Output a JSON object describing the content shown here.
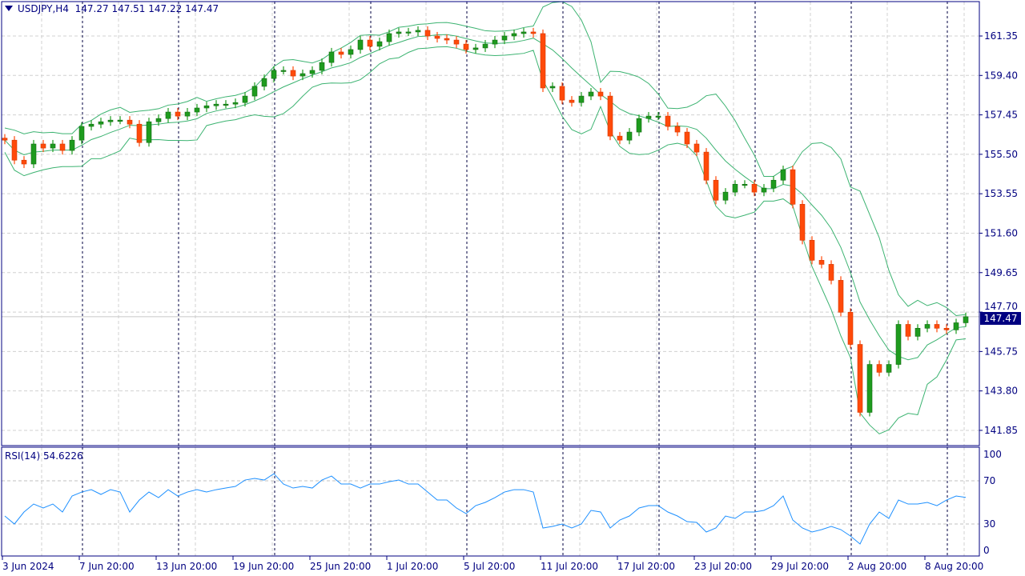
{
  "header": {
    "symbol": "USDJPY,H4",
    "open": "147.27",
    "high": "147.51",
    "low": "147.22",
    "close": "147.47"
  },
  "rsi_header": {
    "label": "RSI(14)",
    "value": "54.6226"
  },
  "current_price_tag": "147.47",
  "colors": {
    "frame": "#000080",
    "bull": "#1e9b1e",
    "bear": "#ff4a0a",
    "bands": "#3cb371",
    "rsi": "#1e90ff",
    "grid": "#d0d0d0"
  },
  "chart_data": [
    {
      "type": "candlestick",
      "title": "USDJPY,H4",
      "indicators": [
        "Bollinger Bands"
      ],
      "ylim": [
        141.0,
        163.0
      ],
      "y_ticks": [
        "161.35",
        "159.40",
        "157.45",
        "155.50",
        "153.55",
        "151.60",
        "149.65",
        "147.70",
        "145.75",
        "143.80",
        "141.85"
      ],
      "x_ticks": [
        "3 Jun 2024",
        "7 Jun 20:00",
        "13 Jun 20:00",
        "19 Jun 20:00",
        "25 Jun 20:00",
        "1 Jul 20:00",
        "5 Jul 20:00",
        "11 Jul 20:00",
        "17 Jul 20:00",
        "23 Jul 20:00",
        "29 Jul 20:00",
        "2 Aug 20:00",
        "8 Aug 20:00"
      ],
      "grid": true,
      "close": [
        156.2,
        155.21,
        155.02,
        156.01,
        155.81,
        156.01,
        155.69,
        156.2,
        156.88,
        156.99,
        157.11,
        157.19,
        157.19,
        156.99,
        156.08,
        157.11,
        157.27,
        157.59,
        157.39,
        157.59,
        157.79,
        157.9,
        157.98,
        157.98,
        158.06,
        158.38,
        158.86,
        159.25,
        159.65,
        159.65,
        159.37,
        159.49,
        159.65,
        160.04,
        160.56,
        160.44,
        160.68,
        161.15,
        160.84,
        161.07,
        161.47,
        161.55,
        161.55,
        161.63,
        161.35,
        161.23,
        161.15,
        160.95,
        160.68,
        160.76,
        160.95,
        161.15,
        161.35,
        161.47,
        161.55,
        161.47,
        158.78,
        158.86,
        158.18,
        158.06,
        158.38,
        158.58,
        158.38,
        156.4,
        156.2,
        156.6,
        157.27,
        157.39,
        157.39,
        156.88,
        156.6,
        156.01,
        155.61,
        154.22,
        153.23,
        153.63,
        154.02,
        154.02,
        153.63,
        153.83,
        154.22,
        154.74,
        153.03,
        151.25,
        150.26,
        150.06,
        149.27,
        147.69,
        146.1,
        142.74,
        145.11,
        144.72,
        145.11,
        147.09,
        146.5,
        146.9,
        147.09,
        146.9,
        146.82,
        147.17,
        147.47
      ]
    },
    {
      "type": "line",
      "title": "RSI(14)",
      "ylim": [
        0,
        100
      ],
      "y_ticks": [
        "100",
        "70",
        "30",
        "0"
      ],
      "levels": [
        70,
        30
      ],
      "values": [
        37.4,
        30,
        41.1,
        48.5,
        44.8,
        48.5,
        41.1,
        55.9,
        59.6,
        61.8,
        57.4,
        61.8,
        59.6,
        41.1,
        52.2,
        59.6,
        54.4,
        61.8,
        55.9,
        59.6,
        61.8,
        59.6,
        61.8,
        63.3,
        64.8,
        70.7,
        72.2,
        70.7,
        76.6,
        67,
        63.3,
        64.8,
        63.3,
        70.7,
        74.4,
        67,
        67,
        63.3,
        67,
        67,
        69.2,
        70.7,
        67,
        67,
        59.6,
        52.2,
        52.2,
        44.8,
        39.6,
        47,
        50,
        54.4,
        59.6,
        61.8,
        61.8,
        59.6,
        26.3,
        27.8,
        30,
        26.3,
        30,
        42.6,
        41.1,
        26.3,
        33.7,
        37.4,
        44.8,
        47,
        47,
        41.1,
        37.4,
        32.2,
        31.5,
        22.6,
        26.3,
        37.4,
        35.2,
        41.1,
        41.1,
        42.6,
        47,
        55.9,
        33.7,
        26.3,
        22.6,
        24.8,
        27.8,
        24.8,
        18.9,
        11.5,
        30,
        41.1,
        35.2,
        52.2,
        48.5,
        48.5,
        50,
        47,
        52.2,
        55.9,
        54.6
      ]
    }
  ]
}
